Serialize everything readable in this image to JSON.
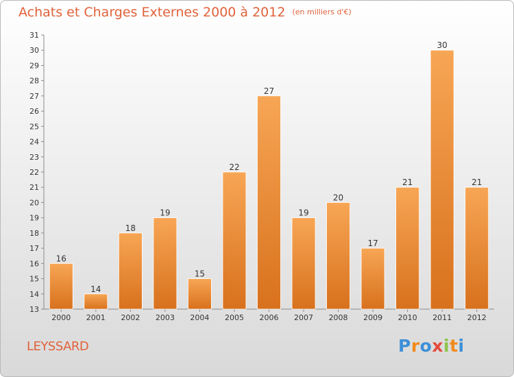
{
  "chart_data": {
    "type": "bar",
    "title": "Achats et Charges Externes 2000 à 2012",
    "subtitle": "(en milliers d'€)",
    "categories": [
      "2000",
      "2001",
      "2002",
      "2003",
      "2004",
      "2005",
      "2006",
      "2007",
      "2008",
      "2009",
      "2010",
      "2011",
      "2012"
    ],
    "values": [
      16,
      14,
      18,
      19,
      15,
      22,
      27,
      19,
      20,
      17,
      21,
      30,
      21
    ],
    "ylim": [
      13,
      31
    ],
    "yticks": [
      13,
      14,
      15,
      16,
      17,
      18,
      19,
      20,
      21,
      22,
      23,
      24,
      25,
      26,
      27,
      28,
      29,
      30,
      31
    ],
    "grid": false,
    "colors": {
      "bar_light": "#f7a655",
      "bar_dark": "#d8711d",
      "title": "#e0623b"
    }
  },
  "footer": {
    "commune": "LEYSSARD",
    "logo_letters": [
      "P",
      "r",
      "o",
      "x",
      "i",
      "t",
      "i"
    ],
    "logo_colors": [
      "#3d8fd8",
      "#f08a1c",
      "#3d8fd8",
      "#e34b3c",
      "#8bc34a",
      "#f08a1c",
      "#3d8fd8"
    ]
  }
}
